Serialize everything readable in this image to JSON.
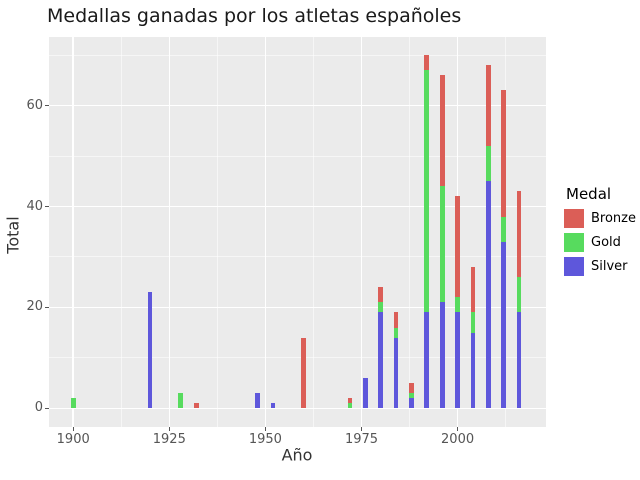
{
  "title": "Medallas ganadas por los atletas españoles",
  "chart_data": {
    "type": "bar",
    "stacked": true,
    "title": "Medallas ganadas por los atletas españoles",
    "xlabel": "Año",
    "ylabel": "Total",
    "categories": [
      1900,
      1920,
      1928,
      1932,
      1948,
      1952,
      1960,
      1972,
      1976,
      1980,
      1984,
      1988,
      1992,
      1996,
      2000,
      2004,
      2008,
      2012,
      2016
    ],
    "series": [
      {
        "name": "Silver",
        "color": "#5e57db",
        "values": [
          0,
          23,
          0,
          0,
          3,
          1,
          0,
          0,
          6,
          19,
          14,
          2,
          19,
          21,
          19,
          15,
          45,
          33,
          19
        ]
      },
      {
        "name": "Gold",
        "color": "#57db5e",
        "values": [
          2,
          0,
          3,
          0,
          0,
          0,
          0,
          1,
          0,
          2,
          2,
          1,
          48,
          23,
          3,
          4,
          7,
          5,
          7
        ]
      },
      {
        "name": "Bronze",
        "color": "#db5e57",
        "values": [
          0,
          0,
          0,
          1,
          0,
          0,
          14,
          1,
          0,
          3,
          3,
          2,
          3,
          22,
          20,
          9,
          16,
          25,
          17
        ]
      }
    ],
    "stack_order_bottom_to_top": [
      "Silver",
      "Gold",
      "Bronze"
    ],
    "legend": {
      "title": "Medal",
      "position": "right",
      "entries": [
        {
          "label": "Bronze",
          "color": "#db5e57"
        },
        {
          "label": "Gold",
          "color": "#57db5e"
        },
        {
          "label": "Silver",
          "color": "#5e57db"
        }
      ]
    },
    "x_ticks": [
      1900,
      1925,
      1950,
      1975,
      2000
    ],
    "y_ticks": [
      0,
      20,
      40,
      60
    ],
    "x_minor_gridlines": [
      1912.5,
      1937.5,
      1962.5,
      1987.5,
      2012.5
    ],
    "y_minor_gridlines": [
      10,
      30,
      50,
      70
    ],
    "xlim": [
      1893.7,
      2023.0
    ],
    "ylim": [
      -3.7,
      73.6
    ],
    "grid": true,
    "panel_background": "#ebebeb"
  }
}
